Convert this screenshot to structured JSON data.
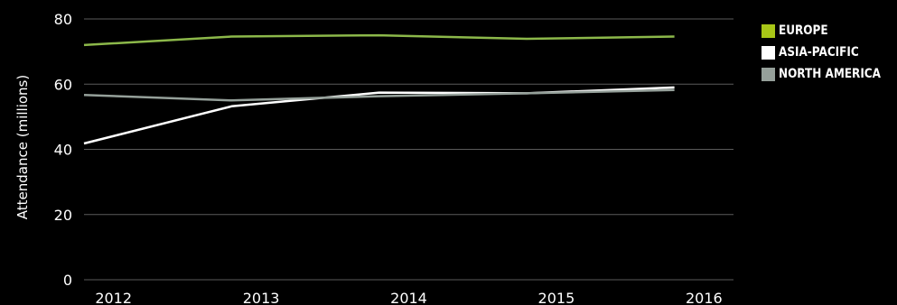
{
  "chart_data": {
    "type": "line",
    "title": "",
    "xlabel": "",
    "ylabel": "Attendance (millions)",
    "x": [
      2012,
      2013,
      2014,
      2015,
      2016
    ],
    "x_tick_labels": [
      "2012",
      "2013",
      "2014",
      "2015",
      "2016"
    ],
    "ylim": [
      0,
      80
    ],
    "y_ticks": [
      0,
      20,
      40,
      60,
      80
    ],
    "y_tick_labels": [
      "0",
      "20",
      "40",
      "60",
      "80"
    ],
    "grid": "horizontal",
    "legend_position": "top-right",
    "series": [
      {
        "name": "EUROPE",
        "color": "#8cb84a",
        "points": [
          [
            2011.8,
            72.0
          ],
          [
            2012.8,
            74.6
          ],
          [
            2013.8,
            75.0
          ],
          [
            2014.8,
            73.9
          ],
          [
            2015.8,
            74.6
          ]
        ]
      },
      {
        "name": "ASIA-PACIFIC",
        "color": "#ffffff",
        "points": [
          [
            2011.8,
            41.8
          ],
          [
            2012.8,
            53.2
          ],
          [
            2013.8,
            57.4
          ],
          [
            2014.8,
            57.2
          ],
          [
            2015.8,
            59.0
          ]
        ]
      },
      {
        "name": "NORTH AMERICA",
        "color": "#95a09a",
        "points": [
          [
            2011.8,
            56.7
          ],
          [
            2012.8,
            55.0
          ],
          [
            2013.8,
            56.3
          ],
          [
            2014.8,
            57.2
          ],
          [
            2015.8,
            58.2
          ]
        ]
      }
    ],
    "legend_swatch_colors": [
      "#a8c617",
      "#ffffff",
      "#95a09a"
    ]
  }
}
